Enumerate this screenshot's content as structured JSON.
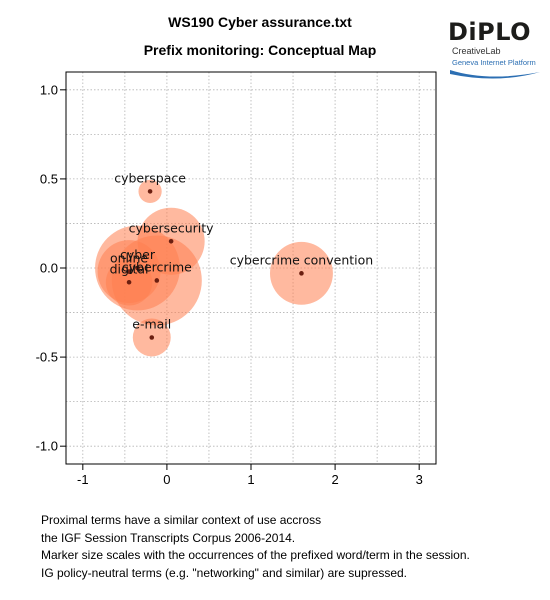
{
  "header": {
    "title": "WS190 Cyber assurance.txt",
    "subtitle": "Prefix monitoring: Conceptual Map"
  },
  "logo": {
    "wordmark": "DiPLO",
    "line1": "CreativeLab",
    "line2": "Geneva Internet Platform",
    "accent_color": "#2c6fb3"
  },
  "chart_data": {
    "type": "scatter",
    "title": "Prefix monitoring: Conceptual Map",
    "xlim": [
      -1.2,
      3.2
    ],
    "ylim": [
      -1.1,
      1.1
    ],
    "x_ticks": [
      -1,
      0,
      1,
      2,
      3
    ],
    "y_ticks": [
      -1.0,
      -0.5,
      0.0,
      0.5,
      1.0
    ],
    "x_tick_labels": [
      "-1",
      "0",
      "1",
      "2",
      "3"
    ],
    "y_tick_labels": [
      "-1.0",
      "-0.5",
      "0.0",
      "0.5",
      "1.0"
    ],
    "grid": true,
    "bubble_color": "#ff7f50",
    "point_color": "#6b1f10",
    "points": [
      {
        "term": "cyberspace",
        "x": -0.2,
        "y": 0.43,
        "size": 0.3
      },
      {
        "term": "cybersecurity",
        "x": 0.05,
        "y": 0.15,
        "size": 2.5
      },
      {
        "term": "cyber",
        "x": -0.35,
        "y": 0.0,
        "size": 4.0
      },
      {
        "term": "online",
        "x": -0.45,
        "y": -0.02,
        "size": 2.2
      },
      {
        "term": "digital",
        "x": -0.45,
        "y": -0.08,
        "size": 1.2
      },
      {
        "term": "cybercrime",
        "x": -0.12,
        "y": -0.07,
        "size": 4.5
      },
      {
        "term": "cybercrime convention",
        "x": 1.6,
        "y": -0.03,
        "size": 2.2
      },
      {
        "term": "e-mail",
        "x": -0.18,
        "y": -0.39,
        "size": 0.8
      }
    ]
  },
  "caption": [
    "Proximal terms have a similar context of use accross",
    "the IGF Session Transcripts Corpus 2006-2014.",
    "Marker size scales with the occurrences of the prefixed word/term in the session.",
    "IG policy-neutral terms (e.g. \"networking\" and similar) are supressed."
  ]
}
